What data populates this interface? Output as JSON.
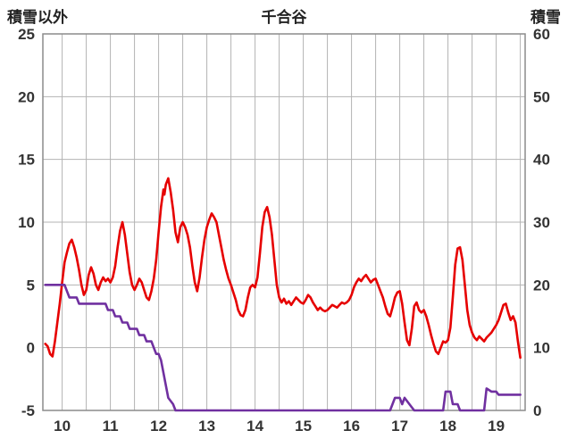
{
  "header": {
    "left_axis_label": "積雪以外",
    "title": "千合谷",
    "right_axis_label": "積雪"
  },
  "colors": {
    "grid": "#b3b3b3",
    "border": "#8c8c8c",
    "tick_text": "#333333",
    "red_series": "#e60000",
    "purple_series": "#7030a0",
    "background": "#ffffff"
  },
  "chart_data": {
    "type": "line",
    "title": "千合谷",
    "left_axis": {
      "label": "積雪以外",
      "range": [
        -5,
        25
      ],
      "ticks": [
        -5,
        0,
        5,
        10,
        15,
        20,
        25
      ]
    },
    "right_axis": {
      "label": "積雪",
      "range": [
        0,
        60
      ],
      "ticks": [
        0,
        10,
        20,
        30,
        40,
        50,
        60
      ]
    },
    "x_axis": {
      "range": [
        9.6,
        19.6
      ],
      "ticks": [
        10,
        11,
        12,
        13,
        14,
        15,
        16,
        17,
        18,
        19
      ],
      "gridline_step": 0.5
    },
    "grid": true,
    "legend": "none",
    "series": [
      {
        "name": "red-line",
        "axis": "left",
        "color": "#e60000",
        "width": 2.6,
        "points": [
          [
            9.65,
            0.3
          ],
          [
            9.7,
            0.1
          ],
          [
            9.75,
            -0.5
          ],
          [
            9.8,
            -0.7
          ],
          [
            9.85,
            0.5
          ],
          [
            9.9,
            2.0
          ],
          [
            9.95,
            3.5
          ],
          [
            10.0,
            5.2
          ],
          [
            10.05,
            6.8
          ],
          [
            10.1,
            7.6
          ],
          [
            10.15,
            8.3
          ],
          [
            10.2,
            8.6
          ],
          [
            10.25,
            8.0
          ],
          [
            10.3,
            7.2
          ],
          [
            10.35,
            6.2
          ],
          [
            10.4,
            5.0
          ],
          [
            10.45,
            4.2
          ],
          [
            10.5,
            4.6
          ],
          [
            10.55,
            5.8
          ],
          [
            10.6,
            6.4
          ],
          [
            10.65,
            5.9
          ],
          [
            10.7,
            5.0
          ],
          [
            10.75,
            4.6
          ],
          [
            10.8,
            5.2
          ],
          [
            10.85,
            5.6
          ],
          [
            10.9,
            5.3
          ],
          [
            10.95,
            5.5
          ],
          [
            11.0,
            5.2
          ],
          [
            11.05,
            5.6
          ],
          [
            11.1,
            6.5
          ],
          [
            11.15,
            8.0
          ],
          [
            11.2,
            9.3
          ],
          [
            11.25,
            10.0
          ],
          [
            11.3,
            9.0
          ],
          [
            11.35,
            7.5
          ],
          [
            11.4,
            6.0
          ],
          [
            11.45,
            5.0
          ],
          [
            11.5,
            4.6
          ],
          [
            11.55,
            5.0
          ],
          [
            11.6,
            5.5
          ],
          [
            11.65,
            5.2
          ],
          [
            11.7,
            4.6
          ],
          [
            11.75,
            4.0
          ],
          [
            11.8,
            3.8
          ],
          [
            11.85,
            4.5
          ],
          [
            11.9,
            5.5
          ],
          [
            11.95,
            7.0
          ],
          [
            12.0,
            9.2
          ],
          [
            12.05,
            11.2
          ],
          [
            12.1,
            12.6
          ],
          [
            12.12,
            12.2
          ],
          [
            12.15,
            13.0
          ],
          [
            12.2,
            13.5
          ],
          [
            12.25,
            12.4
          ],
          [
            12.3,
            11.0
          ],
          [
            12.35,
            9.2
          ],
          [
            12.4,
            8.4
          ],
          [
            12.45,
            9.6
          ],
          [
            12.5,
            10.0
          ],
          [
            12.55,
            9.6
          ],
          [
            12.6,
            9.0
          ],
          [
            12.65,
            8.0
          ],
          [
            12.7,
            6.5
          ],
          [
            12.75,
            5.2
          ],
          [
            12.8,
            4.5
          ],
          [
            12.85,
            5.6
          ],
          [
            12.9,
            7.2
          ],
          [
            12.95,
            8.6
          ],
          [
            13.0,
            9.6
          ],
          [
            13.05,
            10.2
          ],
          [
            13.1,
            10.7
          ],
          [
            13.15,
            10.4
          ],
          [
            13.2,
            10.0
          ],
          [
            13.25,
            9.0
          ],
          [
            13.3,
            8.0
          ],
          [
            13.35,
            7.0
          ],
          [
            13.4,
            6.2
          ],
          [
            13.45,
            5.5
          ],
          [
            13.5,
            5.0
          ],
          [
            13.55,
            4.4
          ],
          [
            13.6,
            3.8
          ],
          [
            13.65,
            3.0
          ],
          [
            13.7,
            2.6
          ],
          [
            13.75,
            2.5
          ],
          [
            13.8,
            3.0
          ],
          [
            13.85,
            4.0
          ],
          [
            13.9,
            4.8
          ],
          [
            13.95,
            5.0
          ],
          [
            14.0,
            4.8
          ],
          [
            14.05,
            5.6
          ],
          [
            14.1,
            7.5
          ],
          [
            14.15,
            9.6
          ],
          [
            14.2,
            10.8
          ],
          [
            14.25,
            11.2
          ],
          [
            14.3,
            10.4
          ],
          [
            14.35,
            9.0
          ],
          [
            14.4,
            7.0
          ],
          [
            14.45,
            5.0
          ],
          [
            14.5,
            4.0
          ],
          [
            14.55,
            3.6
          ],
          [
            14.6,
            3.9
          ],
          [
            14.65,
            3.5
          ],
          [
            14.7,
            3.7
          ],
          [
            14.75,
            3.4
          ],
          [
            14.8,
            3.7
          ],
          [
            14.85,
            4.0
          ],
          [
            14.9,
            3.8
          ],
          [
            14.95,
            3.6
          ],
          [
            15.0,
            3.5
          ],
          [
            15.05,
            3.8
          ],
          [
            15.1,
            4.2
          ],
          [
            15.15,
            4.0
          ],
          [
            15.2,
            3.6
          ],
          [
            15.25,
            3.3
          ],
          [
            15.3,
            3.0
          ],
          [
            15.35,
            3.2
          ],
          [
            15.4,
            3.0
          ],
          [
            15.45,
            2.9
          ],
          [
            15.5,
            3.0
          ],
          [
            15.55,
            3.2
          ],
          [
            15.6,
            3.4
          ],
          [
            15.65,
            3.3
          ],
          [
            15.7,
            3.2
          ],
          [
            15.75,
            3.4
          ],
          [
            15.8,
            3.6
          ],
          [
            15.85,
            3.5
          ],
          [
            15.9,
            3.6
          ],
          [
            15.95,
            3.8
          ],
          [
            16.0,
            4.2
          ],
          [
            16.05,
            4.8
          ],
          [
            16.1,
            5.2
          ],
          [
            16.15,
            5.5
          ],
          [
            16.2,
            5.3
          ],
          [
            16.25,
            5.6
          ],
          [
            16.3,
            5.8
          ],
          [
            16.35,
            5.5
          ],
          [
            16.4,
            5.2
          ],
          [
            16.45,
            5.4
          ],
          [
            16.5,
            5.5
          ],
          [
            16.55,
            5.0
          ],
          [
            16.6,
            4.5
          ],
          [
            16.65,
            4.0
          ],
          [
            16.7,
            3.3
          ],
          [
            16.75,
            2.7
          ],
          [
            16.8,
            2.5
          ],
          [
            16.85,
            3.2
          ],
          [
            16.9,
            4.0
          ],
          [
            16.95,
            4.4
          ],
          [
            17.0,
            4.5
          ],
          [
            17.05,
            3.5
          ],
          [
            17.1,
            2.0
          ],
          [
            17.15,
            0.6
          ],
          [
            17.2,
            0.2
          ],
          [
            17.25,
            1.5
          ],
          [
            17.3,
            3.3
          ],
          [
            17.35,
            3.6
          ],
          [
            17.4,
            3.0
          ],
          [
            17.45,
            2.8
          ],
          [
            17.5,
            3.0
          ],
          [
            17.55,
            2.5
          ],
          [
            17.6,
            1.8
          ],
          [
            17.65,
            1.0
          ],
          [
            17.7,
            0.3
          ],
          [
            17.75,
            -0.3
          ],
          [
            17.8,
            -0.5
          ],
          [
            17.85,
            0.0
          ],
          [
            17.9,
            0.5
          ],
          [
            17.95,
            0.4
          ],
          [
            18.0,
            0.6
          ],
          [
            18.05,
            1.6
          ],
          [
            18.1,
            4.0
          ],
          [
            18.15,
            6.6
          ],
          [
            18.2,
            7.9
          ],
          [
            18.25,
            8.0
          ],
          [
            18.3,
            7.0
          ],
          [
            18.35,
            5.0
          ],
          [
            18.4,
            3.0
          ],
          [
            18.45,
            1.8
          ],
          [
            18.5,
            1.2
          ],
          [
            18.55,
            0.8
          ],
          [
            18.6,
            0.6
          ],
          [
            18.65,
            0.9
          ],
          [
            18.7,
            0.7
          ],
          [
            18.75,
            0.5
          ],
          [
            18.8,
            0.8
          ],
          [
            18.85,
            1.0
          ],
          [
            18.9,
            1.2
          ],
          [
            18.95,
            1.5
          ],
          [
            19.0,
            1.8
          ],
          [
            19.05,
            2.2
          ],
          [
            19.1,
            2.8
          ],
          [
            19.15,
            3.4
          ],
          [
            19.2,
            3.5
          ],
          [
            19.25,
            2.8
          ],
          [
            19.3,
            2.2
          ],
          [
            19.35,
            2.5
          ],
          [
            19.4,
            2.0
          ],
          [
            19.45,
            0.5
          ],
          [
            19.5,
            -0.8
          ]
        ]
      },
      {
        "name": "purple-line",
        "axis": "right",
        "color": "#7030a0",
        "width": 2.6,
        "points": [
          [
            9.65,
            20
          ],
          [
            10.05,
            20
          ],
          [
            10.1,
            19
          ],
          [
            10.15,
            18
          ],
          [
            10.3,
            18
          ],
          [
            10.35,
            17
          ],
          [
            10.9,
            17
          ],
          [
            10.95,
            16
          ],
          [
            11.05,
            16
          ],
          [
            11.1,
            15
          ],
          [
            11.2,
            15
          ],
          [
            11.25,
            14
          ],
          [
            11.35,
            14
          ],
          [
            11.4,
            13
          ],
          [
            11.55,
            13
          ],
          [
            11.6,
            12
          ],
          [
            11.7,
            12
          ],
          [
            11.75,
            11
          ],
          [
            11.85,
            11
          ],
          [
            11.9,
            10
          ],
          [
            11.95,
            9
          ],
          [
            12.0,
            9
          ],
          [
            12.05,
            8
          ],
          [
            12.1,
            6
          ],
          [
            12.15,
            4
          ],
          [
            12.2,
            2
          ],
          [
            12.3,
            1
          ],
          [
            12.35,
            0
          ],
          [
            16.8,
            0
          ],
          [
            16.85,
            1
          ],
          [
            16.9,
            2
          ],
          [
            17.0,
            2
          ],
          [
            17.05,
            1
          ],
          [
            17.1,
            2
          ],
          [
            17.2,
            1
          ],
          [
            17.3,
            0
          ],
          [
            17.9,
            0
          ],
          [
            17.95,
            3
          ],
          [
            18.05,
            3
          ],
          [
            18.1,
            1
          ],
          [
            18.2,
            1
          ],
          [
            18.25,
            0
          ],
          [
            18.75,
            0
          ],
          [
            18.8,
            3.5
          ],
          [
            18.9,
            3
          ],
          [
            19.0,
            3
          ],
          [
            19.05,
            2.5
          ],
          [
            19.5,
            2.5
          ]
        ]
      }
    ]
  }
}
